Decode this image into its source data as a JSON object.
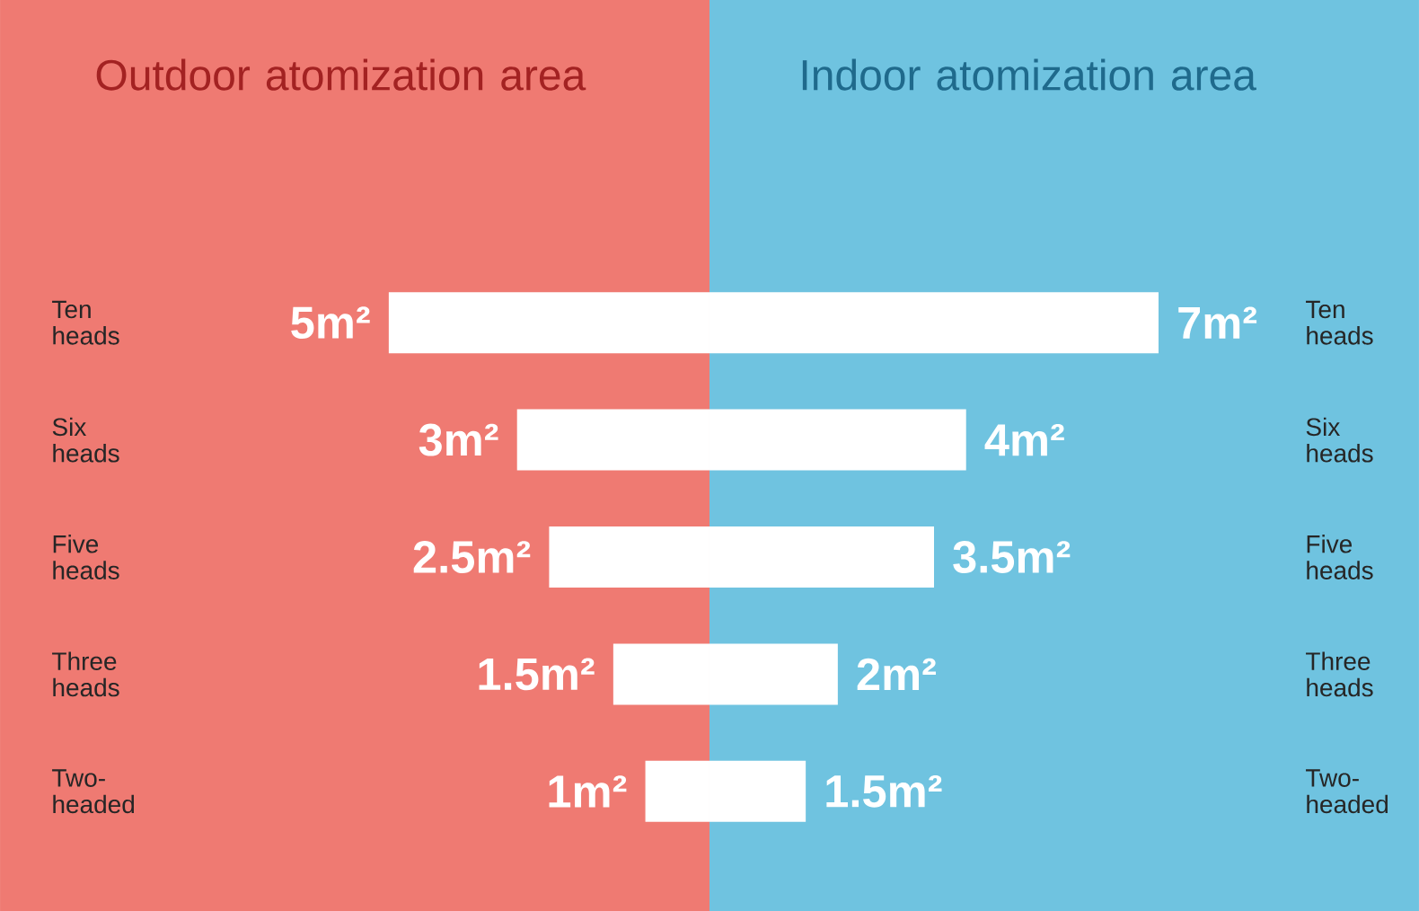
{
  "chart_data": [
    {
      "type": "bar",
      "orientation": "horizontal",
      "title": "Outdoor atomization area",
      "xlim": [
        5,
        0
      ],
      "categories": [
        "Ten heads",
        "Six heads",
        "Five heads",
        "Three heads",
        "Two-headed"
      ],
      "series": [
        {
          "color": "#ffffff",
          "values": [
            5,
            3,
            2.5,
            1.5,
            1
          ],
          "value_labels": [
            "5m²",
            "3m²",
            "2.5m²",
            "1.5m²",
            "1m²"
          ]
        }
      ]
    },
    {
      "type": "bar",
      "orientation": "horizontal",
      "title": "Indoor atomization area",
      "xlim": [
        0,
        7
      ],
      "categories": [
        "Ten heads",
        "Six heads",
        "Five heads",
        "Three heads",
        "Two-headed"
      ],
      "series": [
        {
          "color": "#ffffff",
          "values": [
            7,
            4,
            3.5,
            2,
            1.5
          ],
          "value_labels": [
            "7m²",
            "4m²",
            "3.5m²",
            "2m²",
            "1.5m²"
          ]
        }
      ]
    }
  ]
}
